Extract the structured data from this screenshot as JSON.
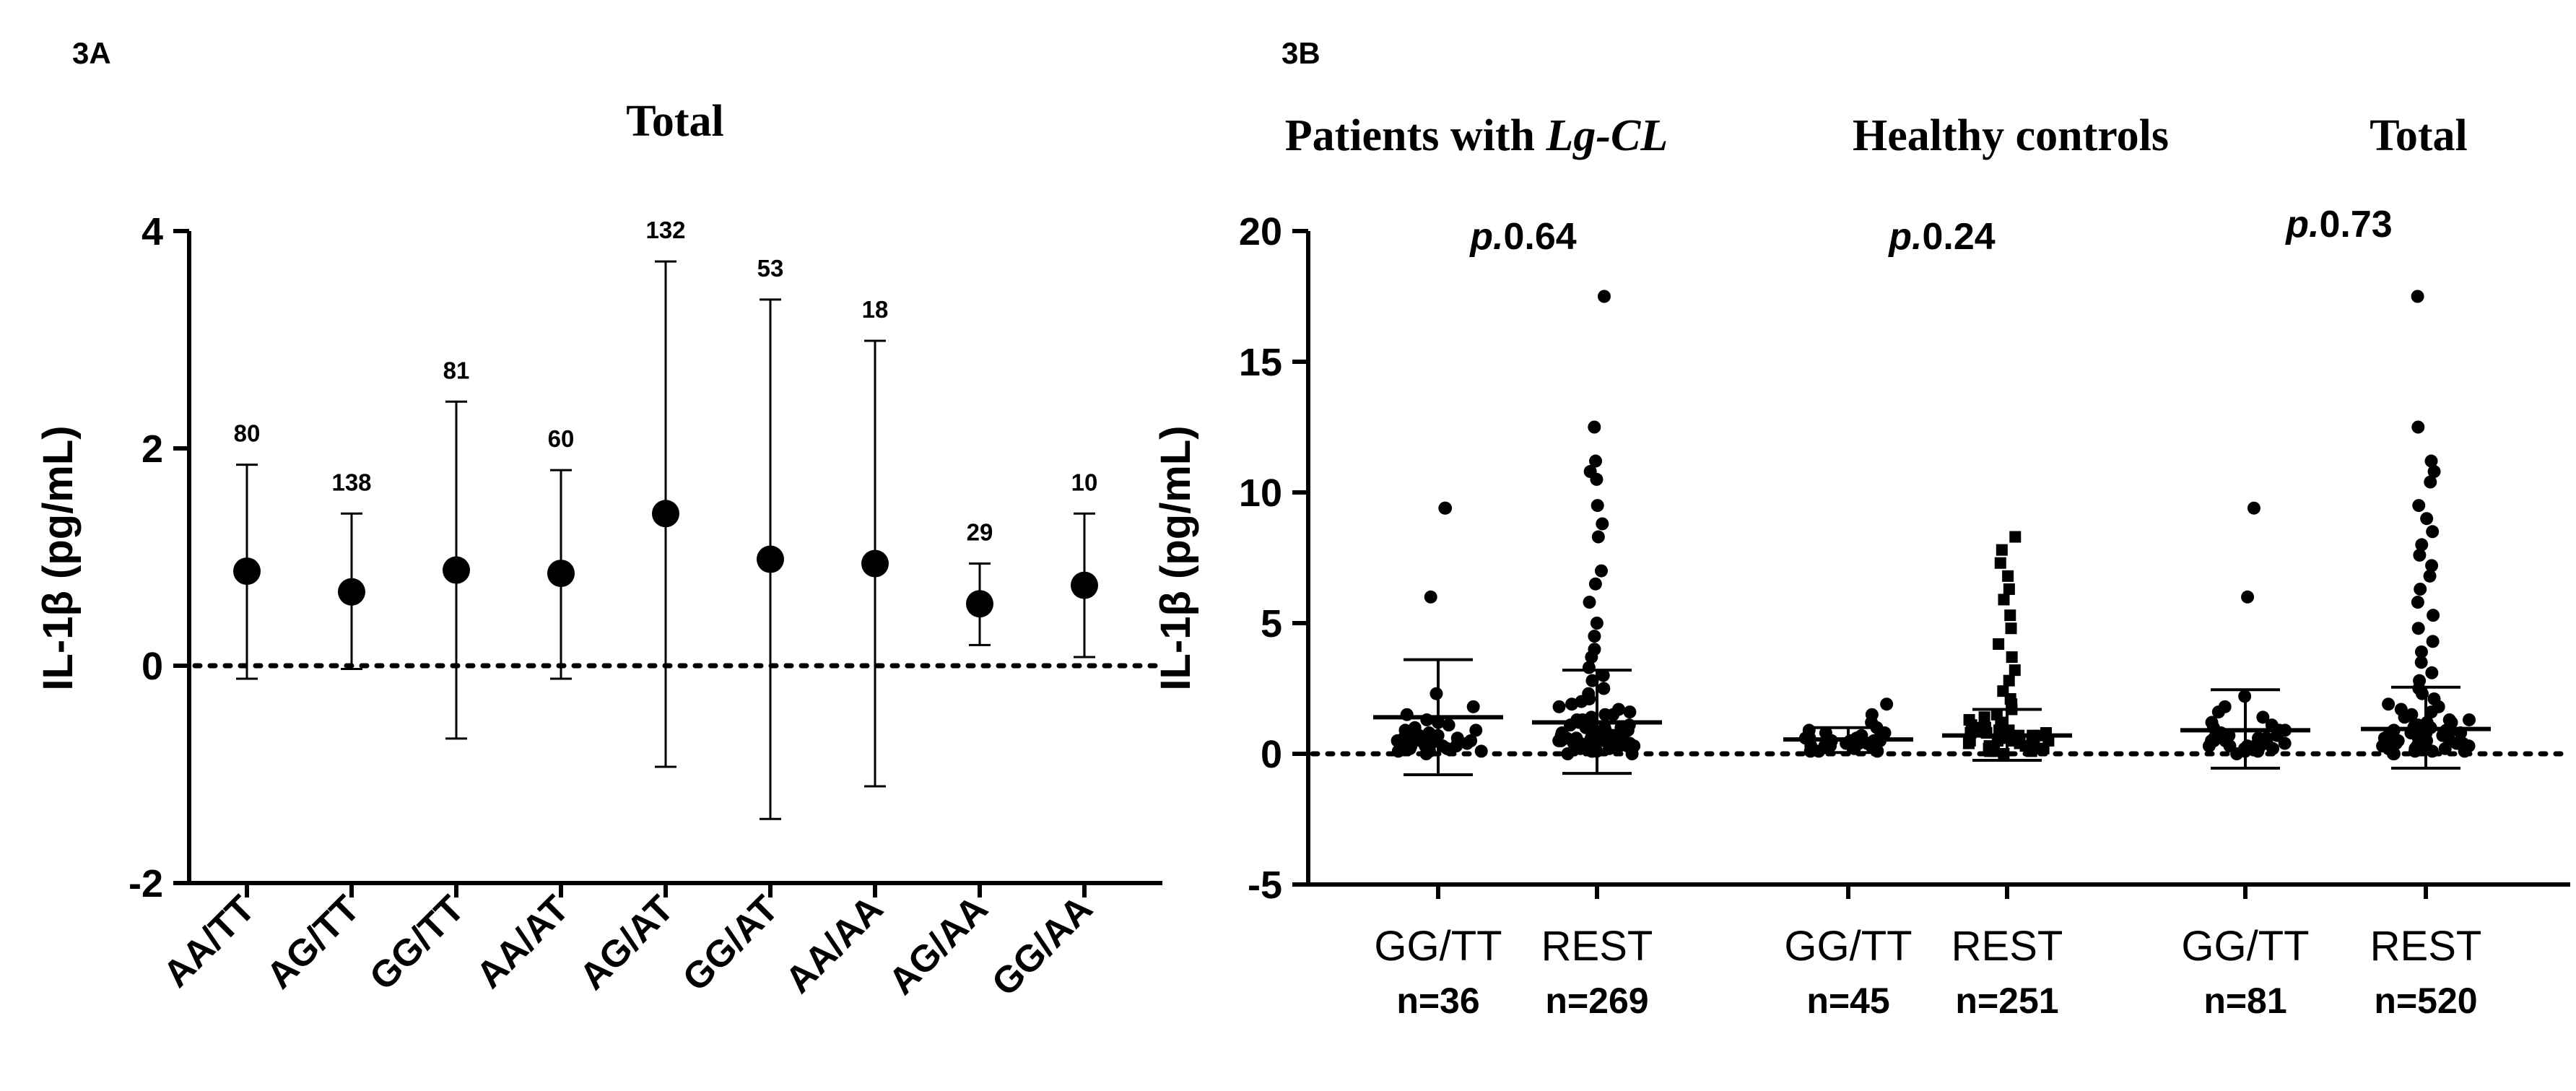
{
  "chart_data": [
    {
      "panel": "3A",
      "type": "scatter",
      "title": "Total",
      "ylabel": "IL-1β (pg/mL)",
      "xlabel": "",
      "ylim": [
        -2,
        4
      ],
      "yticks": [
        -2,
        0,
        2,
        4
      ],
      "reference_line": 0,
      "categories": [
        "AA/TT",
        "AG/TT",
        "GG/TT",
        "AA/AT",
        "AG/AT",
        "GG/AT",
        "AA/AA",
        "AG/AA",
        "GG/AA"
      ],
      "means": [
        0.87,
        0.68,
        0.88,
        0.85,
        1.4,
        0.98,
        0.94,
        0.57,
        0.74
      ],
      "err_low": [
        -0.12,
        -0.03,
        -0.67,
        -0.12,
        -0.93,
        -1.41,
        -1.11,
        0.19,
        0.08
      ],
      "err_high": [
        1.85,
        1.4,
        2.43,
        1.8,
        3.72,
        3.37,
        2.99,
        0.94,
        1.4
      ],
      "n_labels": [
        "80",
        "138",
        "81",
        "60",
        "132",
        "53",
        "18",
        "29",
        "10"
      ]
    },
    {
      "panel": "3B",
      "type": "scatter",
      "ylabel": "IL-1β (pg/mL)",
      "xlabel": "",
      "ylim": [
        -5,
        20
      ],
      "yticks": [
        -5,
        0,
        5,
        10,
        15,
        20
      ],
      "reference_line": 0,
      "groups": [
        {
          "title": "Patients with ",
          "title_italic": "Lg-CL",
          "p_prefix": "p.",
          "p_value": "0.64"
        },
        {
          "title": "Healthy controls",
          "title_italic": "",
          "p_prefix": "p.",
          "p_value": "0.24"
        },
        {
          "title": "Total",
          "title_italic": "",
          "p_prefix": "p.",
          "p_value": "0.73"
        }
      ],
      "series": [
        {
          "name": "GG/TT",
          "n_label": "n=36",
          "mean": 1.4,
          "sd_low": -0.8,
          "sd_high": 3.6,
          "marker": "circle",
          "points": [
            9.4,
            9.4,
            6.0,
            2.3,
            1.8,
            1.5,
            1.3,
            1.2,
            1.1,
            1.0,
            0.9,
            0.9,
            0.8,
            0.8,
            0.7,
            0.7,
            0.6,
            0.6,
            0.6,
            0.5,
            0.5,
            0.5,
            0.4,
            0.4,
            0.4,
            0.3,
            0.3,
            0.3,
            0.3,
            0.2,
            0.2,
            0.2,
            0.1,
            0.1,
            0.1,
            0.0
          ]
        },
        {
          "name": "REST",
          "n_label": "n=269",
          "mean": 1.2,
          "sd_low": -0.75,
          "sd_high": 3.2,
          "marker": "circle",
          "points": [
            17.5,
            12.5,
            11.2,
            10.8,
            10.5,
            9.5,
            8.8,
            8.3,
            7.0,
            6.5,
            5.8,
            5.0,
            4.5,
            4.0,
            3.7,
            3.3,
            3.0,
            2.8,
            2.5,
            2.3,
            2.1,
            2.0,
            1.9,
            1.8,
            1.7,
            1.6,
            1.5,
            1.5,
            1.4,
            1.3,
            1.3,
            1.2,
            1.2,
            1.1,
            1.1,
            1.0,
            1.0,
            1.0,
            0.9,
            0.9,
            0.9,
            0.8,
            0.8,
            0.8,
            0.8,
            0.7,
            0.7,
            0.7,
            0.7,
            0.6,
            0.6,
            0.6,
            0.6,
            0.6,
            0.5,
            0.5,
            0.5,
            0.5,
            0.5,
            0.4,
            0.4,
            0.4,
            0.4,
            0.4,
            0.3,
            0.3,
            0.3,
            0.3,
            0.3,
            0.2,
            0.2,
            0.2,
            0.2,
            0.1,
            0.1,
            0.1,
            0.0,
            0.0
          ]
        },
        {
          "name": "GG/TT",
          "n_label": "n=45",
          "mean": 0.55,
          "sd_low": 0.05,
          "sd_high": 1.0,
          "marker": "circle",
          "points": [
            1.9,
            1.5,
            1.2,
            1.0,
            0.9,
            0.8,
            0.8,
            0.7,
            0.7,
            0.6,
            0.6,
            0.6,
            0.5,
            0.5,
            0.5,
            0.5,
            0.4,
            0.4,
            0.4,
            0.4,
            0.3,
            0.3,
            0.3,
            0.3,
            0.2,
            0.2,
            0.2,
            0.1,
            0.1,
            0.1
          ]
        },
        {
          "name": "REST",
          "n_label": "n=251",
          "mean": 0.7,
          "sd_low": -0.25,
          "sd_high": 1.7,
          "marker": "square",
          "points": [
            8.3,
            7.8,
            7.3,
            6.8,
            6.3,
            5.9,
            5.3,
            4.8,
            4.2,
            3.7,
            3.2,
            2.8,
            2.4,
            2.1,
            1.9,
            1.7,
            1.5,
            1.4,
            1.3,
            1.2,
            1.1,
            1.0,
            1.0,
            0.9,
            0.9,
            0.8,
            0.8,
            0.8,
            0.7,
            0.7,
            0.7,
            0.6,
            0.6,
            0.6,
            0.6,
            0.5,
            0.5,
            0.5,
            0.5,
            0.4,
            0.4,
            0.4,
            0.4,
            0.3,
            0.3,
            0.3,
            0.3,
            0.2,
            0.2,
            0.2,
            0.1,
            0.1,
            0.1,
            0.0
          ]
        },
        {
          "name": "GG/TT",
          "n_label": "n=81",
          "mean": 0.9,
          "sd_low": -0.55,
          "sd_high": 2.45,
          "marker": "circle",
          "points": [
            9.4,
            6.0,
            2.2,
            1.8,
            1.6,
            1.4,
            1.2,
            1.1,
            1.0,
            0.9,
            0.9,
            0.8,
            0.8,
            0.7,
            0.7,
            0.7,
            0.6,
            0.6,
            0.6,
            0.5,
            0.5,
            0.5,
            0.5,
            0.4,
            0.4,
            0.4,
            0.3,
            0.3,
            0.3,
            0.3,
            0.2,
            0.2,
            0.2,
            0.1,
            0.1,
            0.0
          ]
        },
        {
          "name": "REST",
          "n_label": "n=520",
          "mean": 0.95,
          "sd_low": -0.55,
          "sd_high": 2.55,
          "marker": "circle",
          "points": [
            17.5,
            12.5,
            11.2,
            10.8,
            10.4,
            9.5,
            9.0,
            8.5,
            8.0,
            7.6,
            7.2,
            6.8,
            6.3,
            5.8,
            5.3,
            4.8,
            4.3,
            3.9,
            3.5,
            3.1,
            2.8,
            2.5,
            2.3,
            2.1,
            1.9,
            1.8,
            1.7,
            1.6,
            1.5,
            1.4,
            1.3,
            1.3,
            1.2,
            1.2,
            1.1,
            1.1,
            1.0,
            1.0,
            1.0,
            0.9,
            0.9,
            0.9,
            0.8,
            0.8,
            0.8,
            0.8,
            0.7,
            0.7,
            0.7,
            0.7,
            0.6,
            0.6,
            0.6,
            0.6,
            0.6,
            0.5,
            0.5,
            0.5,
            0.5,
            0.5,
            0.4,
            0.4,
            0.4,
            0.4,
            0.4,
            0.3,
            0.3,
            0.3,
            0.3,
            0.3,
            0.2,
            0.2,
            0.2,
            0.2,
            0.1,
            0.1,
            0.1,
            0.0,
            0.0
          ]
        }
      ]
    }
  ]
}
